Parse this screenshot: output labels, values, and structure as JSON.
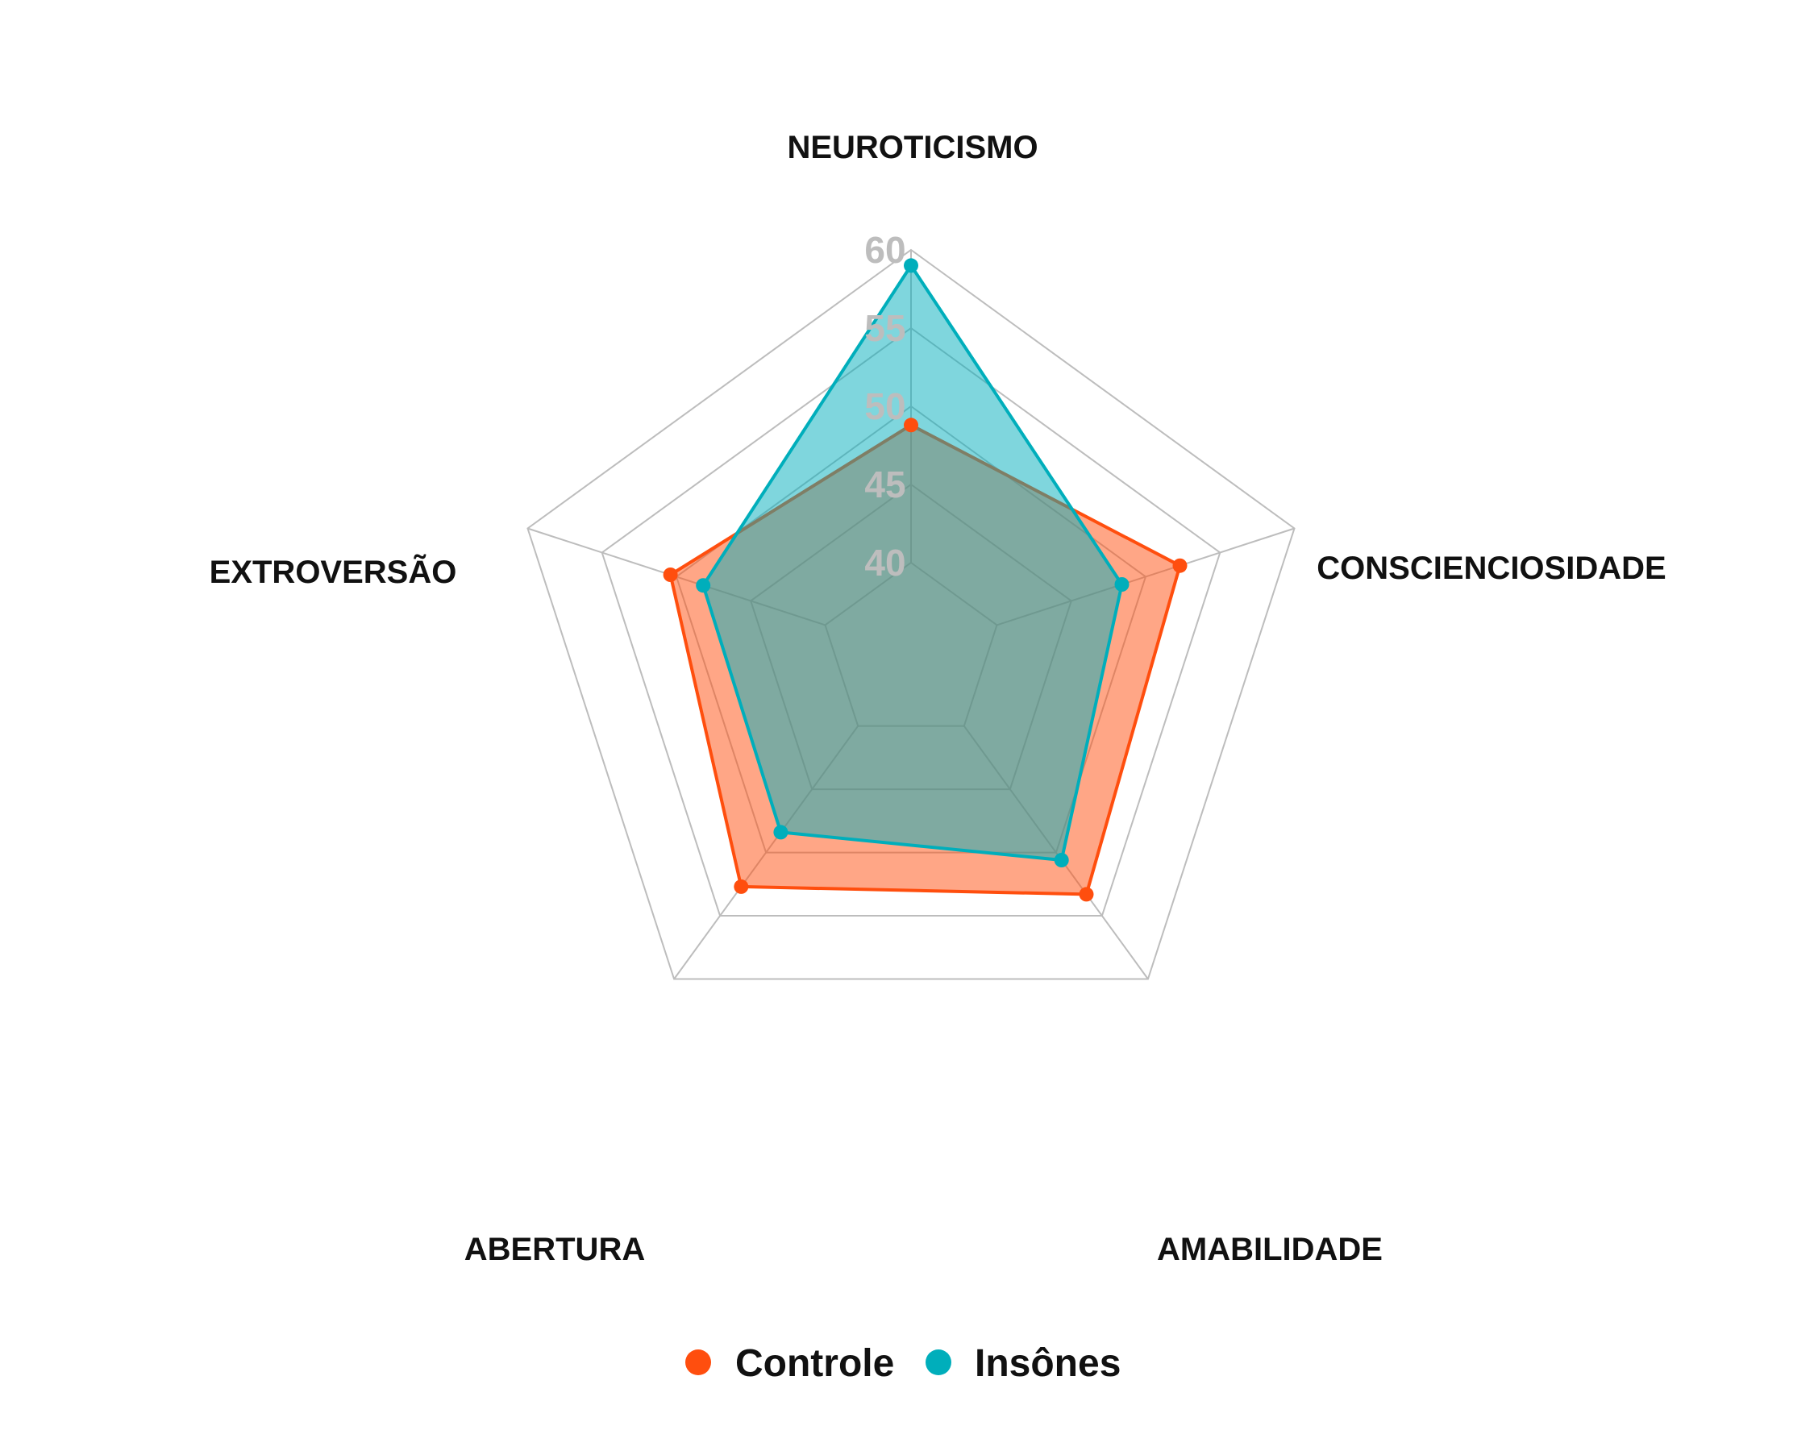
{
  "chart_data": {
    "type": "radar",
    "axes": [
      "NEUROTICISMO",
      "CONSCIENCIOSIDADE",
      "AMABILIDADE",
      "ABERTURA",
      "EXTROVERSÃO"
    ],
    "rlim": [
      40,
      60
    ],
    "ticks": [
      40,
      45,
      50,
      55,
      60
    ],
    "tick_labels": [
      "40",
      "45",
      "50",
      "55",
      "60"
    ],
    "grid": true,
    "legend_position": "bottom",
    "series": [
      {
        "name": "Controle",
        "color": "#FF4E0E",
        "values": [
          48.8,
          52.3,
          53.3,
          52.7,
          50.4
        ]
      },
      {
        "name": "Insônes",
        "color": "#00AEBB",
        "values": [
          59.0,
          48.4,
          50.6,
          48.4,
          48.2
        ]
      }
    ]
  }
}
